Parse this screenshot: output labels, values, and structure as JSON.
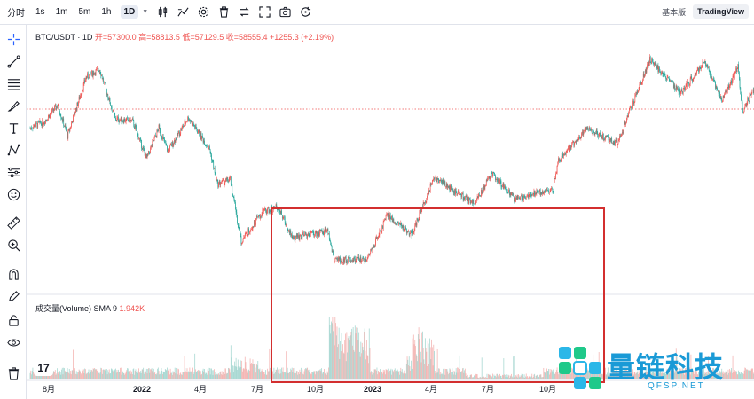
{
  "toolbar": {
    "timeframes": [
      "分时",
      "1s",
      "1m",
      "5m",
      "1h",
      "1D"
    ],
    "active_timeframe": "1D",
    "modes": [
      "基本版",
      "TradingView"
    ],
    "active_mode": "TradingView"
  },
  "legend": {
    "symbol": "BTC/USDT · 1D",
    "ohlc": "开=57300.0 高=58813.5 低=57129.5 收=58555.4 +1255.3 (+2.19%)"
  },
  "volume_legend": {
    "label": "成交量(Volume) SMA 9",
    "value": "1.942K"
  },
  "watermark": {
    "title": "量链科技",
    "subtitle": "QFSP.NET"
  },
  "logo_text": "17",
  "colors": {
    "up": "#ef5350",
    "down": "#26a69a",
    "highlight": "#d32f2f",
    "last_price_line": "#ef5350"
  },
  "chart_data": {
    "type": "candlestick",
    "symbol": "BTC/USDT",
    "interval": "1D",
    "x_tick_labels": [
      "8月",
      "2022",
      "4月",
      "7月",
      "10月",
      "2023",
      "4月",
      "7月",
      "10月"
    ],
    "price_path": [
      [
        "2021-08",
        44000
      ],
      [
        "2021-08-15",
        46000
      ],
      [
        "2021-09-06",
        52000
      ],
      [
        "2021-09-21",
        41500
      ],
      [
        "2021-10-20",
        64000
      ],
      [
        "2021-11-10",
        68000
      ],
      [
        "2021-12-04",
        47000
      ],
      [
        "2021-12-31",
        46300
      ],
      [
        "2022-01-22",
        35000
      ],
      [
        "2022-02-10",
        44000
      ],
      [
        "2022-02-24",
        37000
      ],
      [
        "2022-03-28",
        47500
      ],
      [
        "2022-04-30",
        37500
      ],
      [
        "2022-05-12",
        29000
      ],
      [
        "2022-06-01",
        30000
      ],
      [
        "2022-06-18",
        19000
      ],
      [
        "2022-07-20",
        23500
      ],
      [
        "2022-08-14",
        24500
      ],
      [
        "2022-09-06",
        19500
      ],
      [
        "2022-10-31",
        20500
      ],
      [
        "2022-11-09",
        16500
      ],
      [
        "2022-12-31",
        16600
      ],
      [
        "2023-01-31",
        23000
      ],
      [
        "2023-03-10",
        20000
      ],
      [
        "2023-04-14",
        30500
      ],
      [
        "2023-06-15",
        25000
      ],
      [
        "2023-07-13",
        31500
      ],
      [
        "2023-08-17",
        26000
      ],
      [
        "2023-10-16",
        28000
      ],
      [
        "2023-10-24",
        34500
      ],
      [
        "2023-12-08",
        44000
      ],
      [
        "2024-01-23",
        39000
      ],
      [
        "2024-03-14",
        73000
      ],
      [
        "2024-05-01",
        57000
      ],
      [
        "2024-06-07",
        71500
      ],
      [
        "2024-07-05",
        54000
      ],
      [
        "2024-07-29",
        69000
      ],
      [
        "2024-08-05",
        50000
      ],
      [
        "2024-08-23",
        58500
      ]
    ],
    "volume_note": "Volume histogram below the price pane, with spikes in the period Nov 2022 and Mar 2023",
    "annotation": {
      "type": "rectangle",
      "from": "2022-07",
      "to": "2023-10",
      "meaning": "sideways range highlighted in red"
    },
    "last_price": 58555.4
  }
}
